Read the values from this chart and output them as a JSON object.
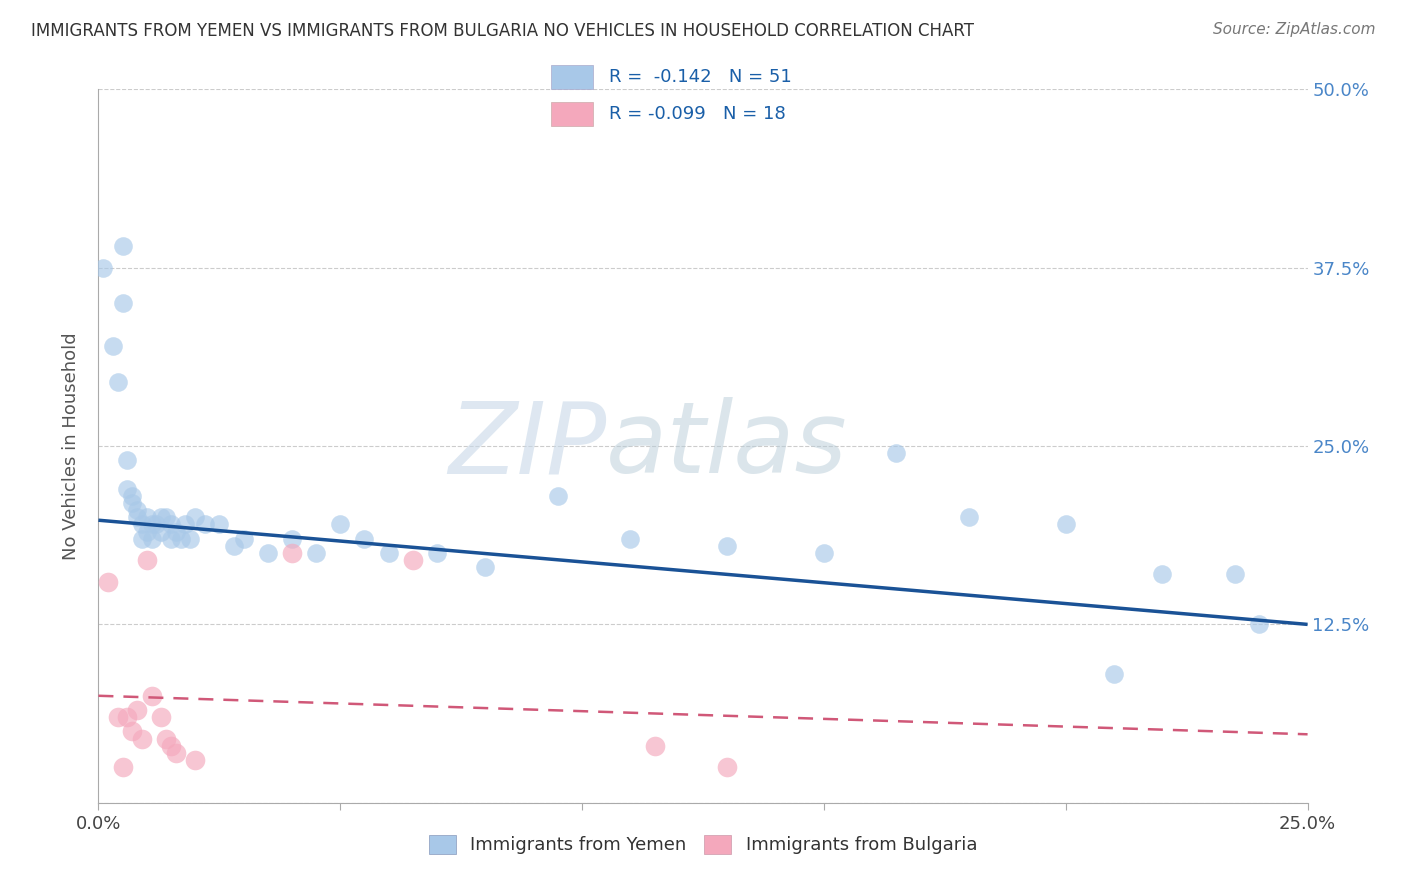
{
  "title": "IMMIGRANTS FROM YEMEN VS IMMIGRANTS FROM BULGARIA NO VEHICLES IN HOUSEHOLD CORRELATION CHART",
  "source": "Source: ZipAtlas.com",
  "ylabel": "No Vehicles in Household",
  "legend_label1": "Immigrants from Yemen",
  "legend_label2": "Immigrants from Bulgaria",
  "r1": -0.142,
  "n1": 51,
  "r2": -0.099,
  "n2": 18,
  "xmin": 0.0,
  "xmax": 0.25,
  "ymin": 0.0,
  "ymax": 0.5,
  "x_ticks": [
    0.0,
    0.05,
    0.1,
    0.15,
    0.2,
    0.25
  ],
  "y_ticks": [
    0.0,
    0.125,
    0.25,
    0.375,
    0.5
  ],
  "color_yemen": "#a8c8e8",
  "color_bulgaria": "#f4a8bc",
  "line_color_yemen": "#1a5296",
  "line_color_bulgaria": "#d05878",
  "watermark_zip": "ZIP",
  "watermark_atlas": "atlas",
  "scatter_yemen_x": [
    0.001,
    0.003,
    0.004,
    0.005,
    0.005,
    0.006,
    0.006,
    0.007,
    0.007,
    0.008,
    0.008,
    0.009,
    0.009,
    0.01,
    0.01,
    0.011,
    0.011,
    0.012,
    0.013,
    0.013,
    0.014,
    0.015,
    0.015,
    0.016,
    0.017,
    0.018,
    0.019,
    0.02,
    0.022,
    0.025,
    0.028,
    0.03,
    0.035,
    0.04,
    0.045,
    0.05,
    0.055,
    0.06,
    0.07,
    0.08,
    0.095,
    0.11,
    0.13,
    0.15,
    0.165,
    0.18,
    0.2,
    0.21,
    0.22,
    0.235,
    0.24
  ],
  "scatter_yemen_y": [
    0.375,
    0.32,
    0.295,
    0.39,
    0.35,
    0.24,
    0.22,
    0.215,
    0.21,
    0.205,
    0.2,
    0.195,
    0.185,
    0.2,
    0.19,
    0.195,
    0.185,
    0.195,
    0.2,
    0.19,
    0.2,
    0.195,
    0.185,
    0.19,
    0.185,
    0.195,
    0.185,
    0.2,
    0.195,
    0.195,
    0.18,
    0.185,
    0.175,
    0.185,
    0.175,
    0.195,
    0.185,
    0.175,
    0.175,
    0.165,
    0.215,
    0.185,
    0.18,
    0.175,
    0.245,
    0.2,
    0.195,
    0.09,
    0.16,
    0.16,
    0.125
  ],
  "scatter_bulgaria_x": [
    0.002,
    0.004,
    0.005,
    0.006,
    0.007,
    0.008,
    0.009,
    0.01,
    0.011,
    0.013,
    0.014,
    0.015,
    0.016,
    0.02,
    0.04,
    0.065,
    0.115,
    0.13
  ],
  "scatter_bulgaria_y": [
    0.155,
    0.06,
    0.025,
    0.06,
    0.05,
    0.065,
    0.045,
    0.17,
    0.075,
    0.06,
    0.045,
    0.04,
    0.035,
    0.03,
    0.175,
    0.17,
    0.04,
    0.025
  ],
  "trend_yemen_x0": 0.0,
  "trend_yemen_y0": 0.198,
  "trend_yemen_x1": 0.25,
  "trend_yemen_y1": 0.125,
  "trend_bulgaria_x0": 0.0,
  "trend_bulgaria_y0": 0.075,
  "trend_bulgaria_x1": 0.25,
  "trend_bulgaria_y1": 0.048
}
